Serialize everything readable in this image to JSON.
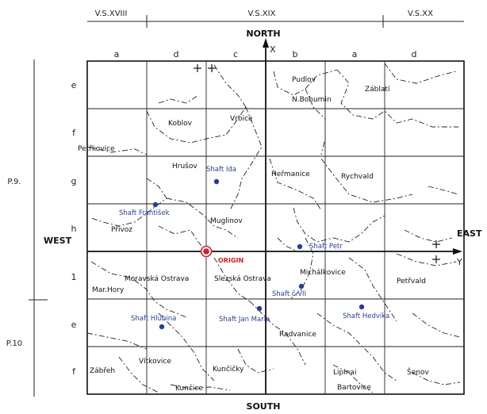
{
  "sheets_top": [
    "V.S.XVIII",
    "V.S.XIX",
    "V.S.XX"
  ],
  "sheets_left": [
    "P.9.",
    "P.10"
  ],
  "columns": [
    "a",
    "d",
    "c",
    "b",
    "a",
    "d"
  ],
  "rows": [
    "e",
    "f",
    "g",
    "h",
    "1",
    "e",
    "f"
  ],
  "directions": {
    "north": "NORTH",
    "south": "SOUTH",
    "west": "WEST",
    "east": "EAST"
  },
  "axes": {
    "x": "X",
    "y": "Y"
  },
  "origin_label": "ORIGIN",
  "places": [
    "Pudlov",
    "N.Bohumin",
    "Záblatí",
    "Koblov",
    "Vrbice",
    "Petřkovice",
    "Hrušov",
    "Heřmanice",
    "Rychvald",
    "Přívoz",
    "Muglinov",
    "Moravská Ostrava",
    "Slezská Ostrava",
    "Michálkovice",
    "Petřvald",
    "Mar.Hory",
    "Radvanice",
    "Zábřeh",
    "Vítkovice",
    "Kunčičky",
    "Kunčice",
    "Lipinai",
    "Bartovice",
    "Šenov"
  ],
  "shafts": [
    "Shaft Ida",
    "Shaft František",
    "Shaft Petr",
    "Shaft č.VII",
    "Shaft Hlubina",
    "Shaft Jan Maria",
    "Shaft Hedvika"
  ],
  "colors": {
    "shaft": "#2a3b9a",
    "origin": "#d0202a",
    "ink": "#111111"
  }
}
